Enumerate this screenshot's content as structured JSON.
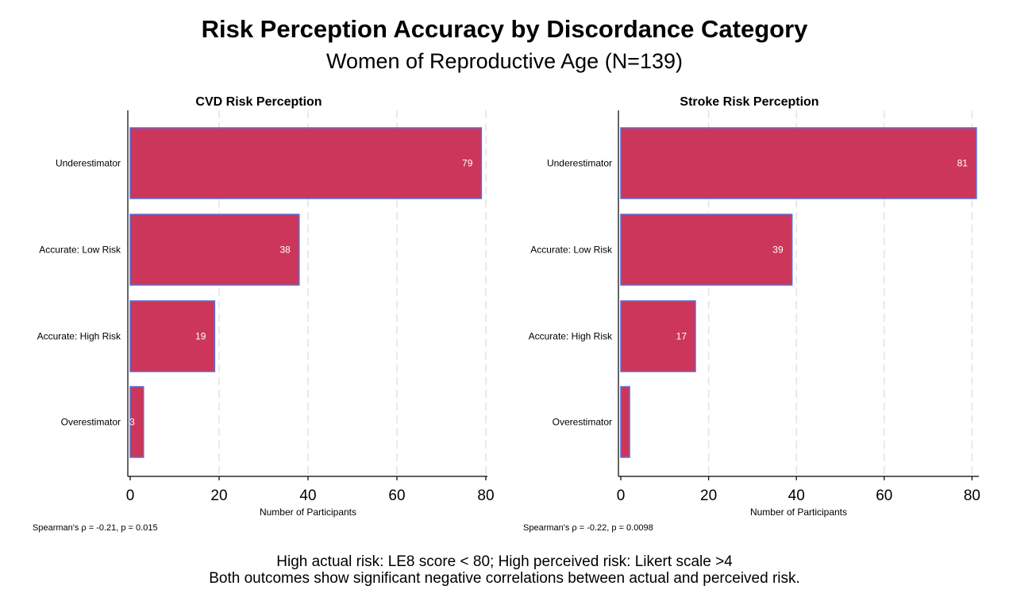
{
  "title": "Risk Perception Accuracy by Discordance Category",
  "subtitle": "Women of Reproductive Age (N=139)",
  "footnotes": {
    "line1": "High actual risk: LE8 score < 80; High perceived risk: Likert scale >4",
    "line2": "Both outcomes show significant negative correlations between actual and perceived risk."
  },
  "colors": {
    "bar_fill": "#cc365a",
    "bar_edge": "#5b6fd6",
    "grid": "#e3e3e3",
    "axis": "#000000",
    "label_text": "#ffffff"
  },
  "chart_data": [
    {
      "type": "bar",
      "orientation": "horizontal",
      "title": "CVD Risk Perception",
      "categories": [
        "Underestimator",
        "Accurate: Low Risk",
        "Accurate: High Risk",
        "Overestimator"
      ],
      "values": [
        79,
        38,
        19,
        3
      ],
      "data_labels": [
        "79",
        "38",
        "19",
        "3"
      ],
      "xlabel": "Number of Participants",
      "ylabel": "",
      "xlim": [
        0,
        80
      ],
      "xticks": [
        0,
        20,
        40,
        60,
        80
      ],
      "grid": true,
      "annotation": "Spearman's ρ = -0.21, p = 0.015"
    },
    {
      "type": "bar",
      "orientation": "horizontal",
      "title": "Stroke Risk Perception",
      "categories": [
        "Underestimator",
        "Accurate: Low Risk",
        "Accurate: High Risk",
        "Overestimator"
      ],
      "values": [
        81,
        39,
        17,
        2
      ],
      "data_labels": [
        "81",
        "39",
        "17",
        ""
      ],
      "xlabel": "Number of Participants",
      "ylabel": "",
      "xlim": [
        0,
        80
      ],
      "xticks": [
        0,
        20,
        40,
        60,
        80
      ],
      "grid": true,
      "annotation": "Spearman's ρ = -0.22, p = 0.0098"
    }
  ]
}
